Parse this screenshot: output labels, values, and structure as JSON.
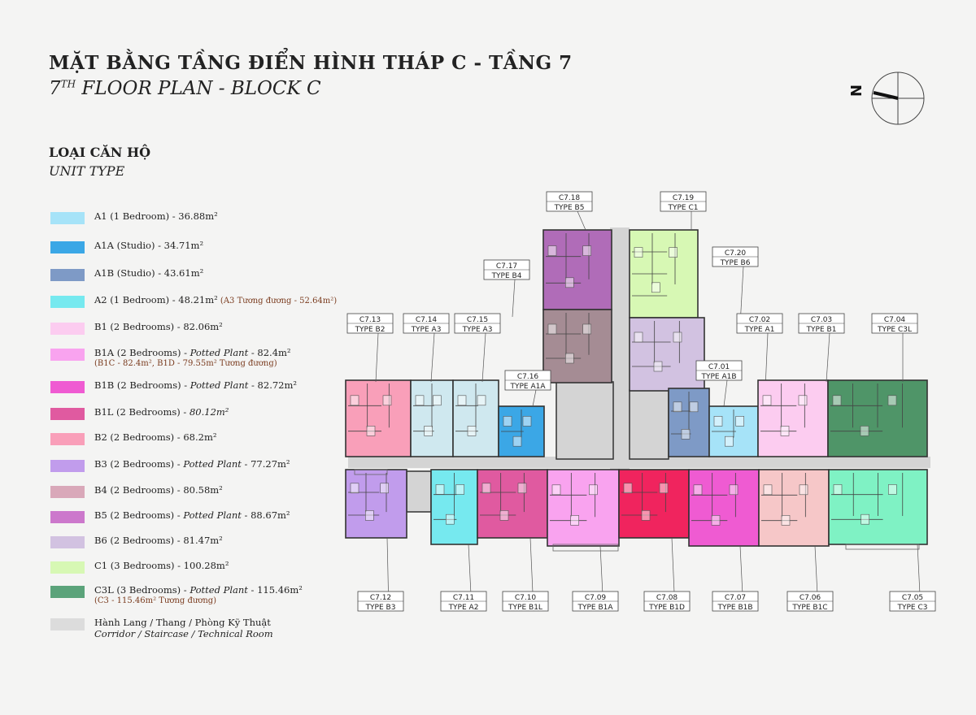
{
  "title": {
    "vi": "MẶT BẰNG TẦNG ĐIỂN HÌNH THÁP C - TẦNG 7",
    "en_prefix": "7",
    "en_sup": "TH",
    "en_rest": " FLOOR PLAN - BLOCK C"
  },
  "section": {
    "vi": "LOẠI CĂN HỘ",
    "en": "UNIT TYPE"
  },
  "compass": {
    "letter": "N"
  },
  "legend": [
    {
      "color": "#a6e3f8",
      "main": "A1 (1 Bedroom) - 36.88m²",
      "italic": "",
      "sub": ""
    },
    {
      "color": "#3ba7e6",
      "main": "A1A (Studio) - 34.71m²",
      "italic": "",
      "sub": ""
    },
    {
      "color": "#7e9ac6",
      "main": "A1B (Studio) - 43.61m²",
      "italic": "",
      "sub": ""
    },
    {
      "color": "#76e9ef",
      "main": "A2 (1 Bedroom) - 48.21m²",
      "italic": "",
      "sub": "(A3 Tương đương - 52.64m²)",
      "sub_inline": true
    },
    {
      "color": "#fcccf0",
      "main": "B1 (2 Bedrooms) - 82.06m²",
      "italic": "",
      "sub": ""
    },
    {
      "color": "#f9a3ef",
      "main": "B1A (2 Bedrooms) - ",
      "italic": "Potted Plant",
      "after": " - 82.4m²",
      "sub": "(B1C - 82.4m², B1D - 79.55m² Tương đương)"
    },
    {
      "color": "#ef5bd2",
      "main": "B1B (2 Bedrooms) - ",
      "italic": "Potted Plant",
      "after": " - 82.72m²",
      "sub": ""
    },
    {
      "color": "#e05aa0",
      "main": "B1L (2 Bedrooms) - ",
      "italic": "80.12m²",
      "after": "",
      "sub": ""
    },
    {
      "color": "#f99fb9",
      "main": "B2 (2 Bedrooms) - 68.2m²",
      "italic": "",
      "sub": ""
    },
    {
      "color": "#c19cec",
      "main": "B3 (2 Bedrooms) - ",
      "italic": "Potted Plant",
      "after": " - 77.27m²",
      "sub": ""
    },
    {
      "color": "#d9a8b9",
      "main": "B4 (2 Bedrooms) - 80.58m²",
      "italic": "",
      "sub": ""
    },
    {
      "color": "#cc78cc",
      "main": "B5 (2 Bedrooms) - ",
      "italic": "Potted Plant",
      "after": " - 88.67m²",
      "sub": ""
    },
    {
      "color": "#d2c2e1",
      "main": "B6 (2 Bedrooms) - 81.47m²",
      "italic": "",
      "sub": ""
    },
    {
      "color": "#d7f8b4",
      "main": "C1 (3 Bedrooms) - 100.28m²",
      "italic": "",
      "sub": ""
    },
    {
      "color": "#5ba37a",
      "main": "C3L (3 Bedrooms) - ",
      "italic": "Potted Plant",
      "after": " - 115.46m²",
      "sub": "(C3 - 115.46m² Tương đương)"
    },
    {
      "color": "#dcdcdc",
      "main": "Hành Lang / Thang / Phòng Kỹ Thuật",
      "italic": "",
      "sub_italic": "Corridor / Staircase / Technical Room"
    }
  ],
  "units": [
    {
      "id": "C7.18",
      "type": "TYPE B5",
      "color": "#b06cb8"
    },
    {
      "id": "C7.19",
      "type": "TYPE C1",
      "color": "#d7f8b4"
    },
    {
      "id": "C7.17",
      "type": "TYPE B4",
      "color": "#a58c94"
    },
    {
      "id": "C7.20",
      "type": "TYPE B6",
      "color": "#d2c2e1"
    },
    {
      "id": "C7.13",
      "type": "TYPE B2",
      "color": "#f99fb9"
    },
    {
      "id": "C7.14",
      "type": "TYPE A3",
      "color": "#cfe8ef"
    },
    {
      "id": "C7.15",
      "type": "TYPE A3",
      "color": "#cfe8ef"
    },
    {
      "id": "C7.16",
      "type": "TYPE A1A",
      "color": "#3ba7e6"
    },
    {
      "id": "C7.01",
      "type": "TYPE A1B",
      "color": "#7e9ac6"
    },
    {
      "id": "C7.02",
      "type": "TYPE A1",
      "color": "#a6e3f8"
    },
    {
      "id": "C7.03",
      "type": "TYPE B1",
      "color": "#fcccf0"
    },
    {
      "id": "C7.04",
      "type": "TYPE C3L",
      "color": "#4f9568"
    },
    {
      "id": "C7.12",
      "type": "TYPE B3",
      "color": "#c19cec"
    },
    {
      "id": "C7.11",
      "type": "TYPE A2",
      "color": "#76e9ef"
    },
    {
      "id": "C7.10",
      "type": "TYPE B1L",
      "color": "#e05aa0"
    },
    {
      "id": "C7.09",
      "type": "TYPE B1A",
      "color": "#f9a3ef"
    },
    {
      "id": "C7.08",
      "type": "TYPE B1D",
      "color": "#f0245e"
    },
    {
      "id": "C7.07",
      "type": "TYPE B1B",
      "color": "#ef5bd2"
    },
    {
      "id": "C7.06",
      "type": "TYPE B1C",
      "color": "#f6c7c8"
    },
    {
      "id": "C7.05",
      "type": "TYPE C3",
      "color": "#7ff2c4"
    }
  ],
  "colors": {
    "corridor": "#d4d4d4",
    "wall": "#333333"
  }
}
